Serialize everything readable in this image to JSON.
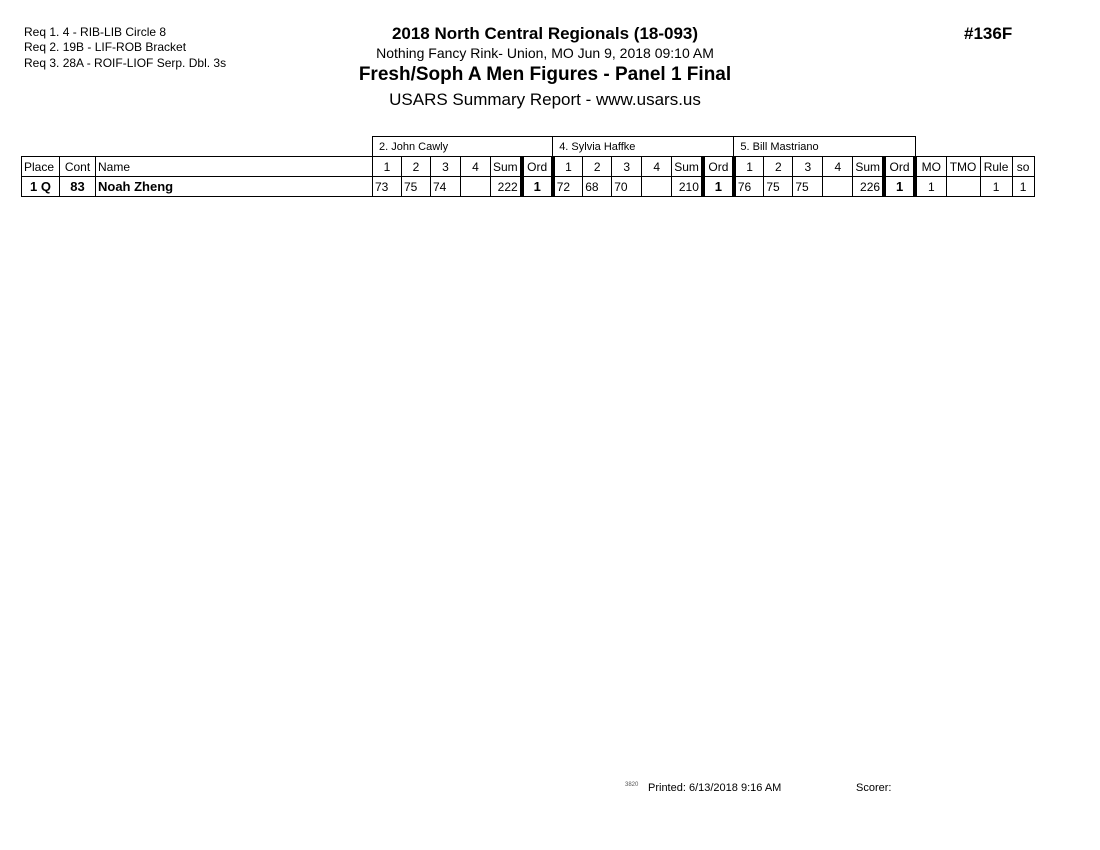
{
  "requirements": [
    "Req  1.  4 - RIB-LIB Circle 8",
    "Req  2.  19B - LIF-ROB Bracket",
    "Req  3.  28A - ROIF-LIOF Serp. Dbl. 3s"
  ],
  "header": {
    "title": "2018 North Central Regionals (18-093)",
    "location": "Nothing Fancy Rink- Union, MO  Jun 9, 2018  09:10 AM",
    "event": "Fresh/Soph A Men Figures - Panel 1 Final",
    "report": "USARS Summary Report - www.usars.us",
    "event_number": "#136F"
  },
  "table": {
    "judges": [
      "2.  John Cawly",
      "4.  Sylvia Haffke",
      "5.  Bill Mastriano"
    ],
    "columns": {
      "place": "Place",
      "cont": "Cont",
      "name": "Name",
      "judge_cols": [
        "1",
        "2",
        "3",
        "4",
        "Sum",
        "Ord"
      ],
      "mo": "MO",
      "tmo": "TMO",
      "rule": "Rule",
      "so": "so"
    },
    "rows": [
      {
        "place": "1 Q",
        "cont": "83",
        "name": "Noah Zheng",
        "judges": [
          {
            "scores": [
              "73",
              "75",
              "74",
              ""
            ],
            "sum": "222",
            "ord": "1"
          },
          {
            "scores": [
              "72",
              "68",
              "70",
              ""
            ],
            "sum": "210",
            "ord": "1"
          },
          {
            "scores": [
              "76",
              "75",
              "75",
              ""
            ],
            "sum": "226",
            "ord": "1"
          }
        ],
        "mo": "1",
        "tmo": "",
        "rule": "1",
        "so": "1"
      }
    ]
  },
  "footer": {
    "code": "3820",
    "printed": "Printed:  6/13/2018  9:16 AM",
    "scorer": "Scorer:"
  }
}
